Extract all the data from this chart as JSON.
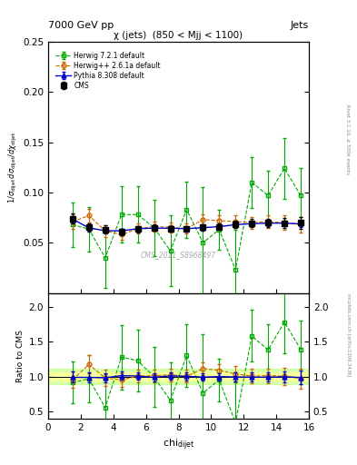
{
  "title_top": "7000 GeV pp",
  "title_right": "Jets",
  "panel_title": "χ (jets)  (850 < Mjj < 1100)",
  "xlabel": "chi",
  "xlabel_sub": "dijet",
  "ylabel_main": "1/σ_dijet dσ_dijet/dchi_dijet",
  "ylabel_ratio": "Ratio to CMS",
  "watermark": "CMS_2011_S8968497",
  "rivet_label": "Rivet 3.1.10, ≥ 500k events",
  "arxiv_label": "mcplots.cern.ch [arXiv:1306.3436]",
  "cms_x": [
    1.5,
    2.5,
    3.5,
    4.5,
    5.5,
    6.5,
    7.5,
    8.5,
    9.5,
    10.5,
    11.5,
    12.5,
    13.5,
    14.5,
    15.5
  ],
  "cms_y": [
    0.0742,
    0.0655,
    0.063,
    0.0609,
    0.0635,
    0.0651,
    0.0638,
    0.0637,
    0.0654,
    0.066,
    0.0683,
    0.0695,
    0.07,
    0.0696,
    0.0697
  ],
  "cms_yerr": [
    0.005,
    0.004,
    0.004,
    0.003,
    0.003,
    0.003,
    0.003,
    0.003,
    0.003,
    0.003,
    0.004,
    0.004,
    0.004,
    0.005,
    0.006
  ],
  "herwig_x": [
    1.5,
    2.5,
    3.5,
    4.5,
    5.5,
    6.5,
    7.5,
    8.5,
    9.5,
    10.5,
    11.5,
    12.5,
    13.5,
    14.5,
    15.5
  ],
  "herwig_y": [
    0.071,
    0.077,
    0.0618,
    0.058,
    0.064,
    0.066,
    0.0655,
    0.064,
    0.073,
    0.072,
    0.071,
    0.07,
    0.071,
    0.07,
    0.068
  ],
  "herwig_yerr": [
    0.007,
    0.007,
    0.006,
    0.005,
    0.005,
    0.005,
    0.005,
    0.005,
    0.005,
    0.005,
    0.006,
    0.006,
    0.006,
    0.007,
    0.008
  ],
  "herwig7_x": [
    1.5,
    2.5,
    3.5,
    4.5,
    5.5,
    6.5,
    7.5,
    8.5,
    9.5,
    10.5,
    11.5,
    12.5,
    13.5,
    14.5,
    15.5
  ],
  "herwig7_y": [
    0.068,
    0.0635,
    0.035,
    0.078,
    0.078,
    0.065,
    0.042,
    0.083,
    0.05,
    0.063,
    0.023,
    0.11,
    0.097,
    0.124,
    0.097
  ],
  "herwig7_yerr": [
    0.022,
    0.022,
    0.03,
    0.028,
    0.028,
    0.028,
    0.035,
    0.028,
    0.055,
    0.02,
    0.04,
    0.025,
    0.025,
    0.03,
    0.027
  ],
  "pythia_x": [
    1.5,
    2.5,
    3.5,
    4.5,
    5.5,
    6.5,
    7.5,
    8.5,
    9.5,
    10.5,
    11.5,
    12.5,
    13.5,
    14.5,
    15.5
  ],
  "pythia_y": [
    0.0735,
    0.0648,
    0.062,
    0.0618,
    0.064,
    0.0645,
    0.0645,
    0.064,
    0.065,
    0.066,
    0.068,
    0.069,
    0.0695,
    0.0695,
    0.0688
  ],
  "pythia_yerr": [
    0.003,
    0.002,
    0.002,
    0.002,
    0.002,
    0.002,
    0.002,
    0.002,
    0.002,
    0.002,
    0.002,
    0.002,
    0.002,
    0.002,
    0.003
  ],
  "cms_color": "#000000",
  "herwig_color": "#cc6600",
  "herwig7_color": "#00aa00",
  "pythia_color": "#0000cc",
  "xlim": [
    0,
    16
  ],
  "ylim_main": [
    0.0,
    0.25
  ],
  "ylim_ratio": [
    0.4,
    2.2
  ],
  "yticks_main": [
    0.05,
    0.1,
    0.15,
    0.2,
    0.25
  ],
  "yticks_ratio": [
    0.5,
    1.0,
    1.5,
    2.0
  ],
  "green_band_color": "#ccff99",
  "yellow_band_color": "#ffff99",
  "band_alpha": 0.8
}
